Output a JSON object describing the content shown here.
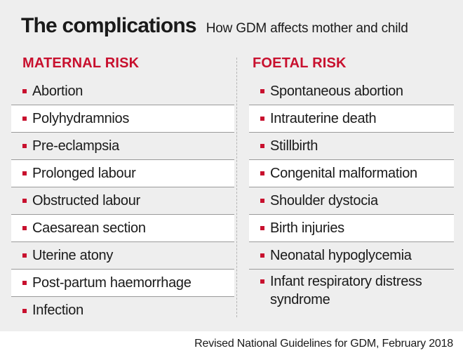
{
  "header": {
    "title": "The complications",
    "subtitle": "How GDM affects mother and child"
  },
  "maternal": {
    "heading": "MATERNAL RISK",
    "items": [
      "Abortion",
      "Polyhydramnios",
      "Pre-eclampsia",
      "Prolonged labour",
      "Obstructed labour",
      "Caesarean section",
      "Uterine atony",
      "Post-partum haemorrhage",
      "Infection"
    ]
  },
  "foetal": {
    "heading": "FOETAL RISK",
    "items": [
      "Spontaneous abortion",
      "Intrauterine death",
      "Stillbirth",
      "Congenital malformation",
      "Shoulder dystocia",
      "Birth injuries",
      "Neonatal hypoglycemia",
      "Infant respiratory distress syndrome"
    ]
  },
  "source": "Revised National  Guidelines for GDM, February 2018",
  "colors": {
    "accent": "#c8102e",
    "panel_background": "#eeeeee",
    "alt_row_background": "#ffffff"
  }
}
